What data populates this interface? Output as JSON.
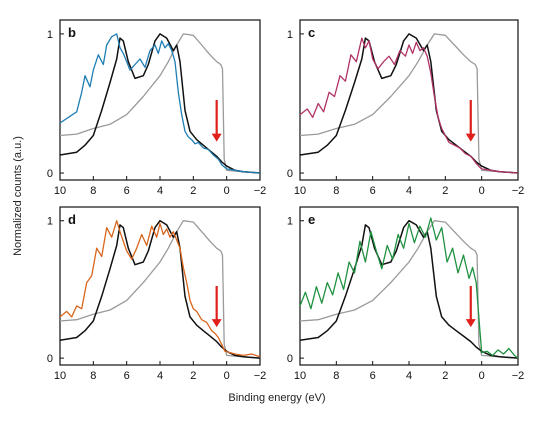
{
  "figure": {
    "ylabel": "Normalized counts (a.u.)",
    "xlabel": "Binding energy (eV)"
  },
  "colors": {
    "black": "#111111",
    "gray": "#9a9a9a",
    "b": "#1f7db5",
    "c": "#b13366",
    "d": "#d9661c",
    "e": "#1f9140",
    "arrow": "#e0201b"
  },
  "chart_data": [
    {
      "type": "line",
      "panel": "b",
      "x_ticks": [
        "10",
        "8",
        "6",
        "4",
        "2",
        "0",
        "−2"
      ],
      "y_ticks": [
        "0",
        "1"
      ],
      "xlim": [
        10,
        -2
      ],
      "ylim": [
        -0.05,
        1.1
      ],
      "arrow_x": 0.6,
      "series": [
        {
          "color_key": "gray",
          "x": [
            10,
            9,
            8,
            7,
            6,
            5,
            4,
            3.5,
            3,
            2.6,
            2,
            1.5,
            1.0,
            0.6,
            0.35,
            0.25,
            0.15,
            0,
            -1,
            -2
          ],
          "y": [
            0.27,
            0.28,
            0.32,
            0.35,
            0.42,
            0.55,
            0.7,
            0.8,
            0.92,
            1.0,
            0.99,
            0.92,
            0.85,
            0.8,
            0.78,
            0.75,
            0.1,
            0.02,
            0.01,
            0.0
          ]
        },
        {
          "color_key": "black",
          "x": [
            10,
            9,
            8.5,
            8,
            7.5,
            7,
            6.6,
            6.4,
            6.2,
            5.9,
            5.5,
            5,
            4.7,
            4.3,
            4,
            3.6,
            3.2,
            3,
            2.8,
            2.5,
            2.2,
            1.8,
            1.4,
            1,
            0.6,
            0.3,
            0,
            -0.5,
            -1,
            -2
          ],
          "y": [
            0.13,
            0.15,
            0.2,
            0.27,
            0.45,
            0.65,
            0.82,
            0.97,
            0.95,
            0.8,
            0.68,
            0.7,
            0.78,
            0.95,
            1.0,
            0.97,
            0.88,
            0.92,
            0.8,
            0.45,
            0.3,
            0.24,
            0.2,
            0.16,
            0.12,
            0.08,
            0.05,
            0.02,
            0.01,
            0.0
          ]
        },
        {
          "color_key": "b",
          "x": [
            10,
            9.5,
            9,
            8.7,
            8.5,
            8.2,
            8,
            7.7,
            7.4,
            7.2,
            6.9,
            6.6,
            6.4,
            6.2,
            6,
            5.8,
            5.5,
            5.2,
            4.9,
            4.6,
            4.3,
            4.1,
            3.9,
            3.7,
            3.5,
            3.3,
            3.1,
            2.9,
            2.7,
            2.5,
            2.3,
            2.1,
            1.9,
            1.7,
            1.4,
            1.1,
            0.8,
            0.5,
            0.3,
            0.1,
            0,
            -0.5,
            -1,
            -2
          ],
          "y": [
            0.36,
            0.4,
            0.44,
            0.58,
            0.7,
            0.62,
            0.74,
            0.85,
            0.78,
            0.92,
            0.98,
            1.0,
            0.9,
            0.86,
            0.8,
            0.74,
            0.78,
            0.82,
            0.76,
            0.88,
            0.92,
            0.86,
            0.95,
            0.9,
            0.93,
            0.88,
            0.8,
            0.58,
            0.42,
            0.3,
            0.26,
            0.24,
            0.21,
            0.22,
            0.18,
            0.17,
            0.13,
            0.1,
            0.06,
            0.04,
            0.03,
            0.02,
            0.01,
            0.0
          ]
        }
      ]
    },
    {
      "type": "line",
      "panel": "c",
      "x_ticks": [
        "10",
        "8",
        "6",
        "4",
        "2",
        "0",
        "−2"
      ],
      "y_ticks": [
        "0",
        "1"
      ],
      "xlim": [
        10,
        -2
      ],
      "ylim": [
        -0.05,
        1.1
      ],
      "arrow_x": 0.6,
      "series": [
        {
          "color_key": "gray",
          "x": [
            10,
            9,
            8,
            7,
            6,
            5,
            4,
            3.5,
            3,
            2.6,
            2,
            1.5,
            1.0,
            0.6,
            0.35,
            0.25,
            0.15,
            0,
            -1,
            -2
          ],
          "y": [
            0.27,
            0.28,
            0.32,
            0.35,
            0.42,
            0.55,
            0.7,
            0.8,
            0.92,
            1.0,
            0.99,
            0.92,
            0.85,
            0.8,
            0.78,
            0.75,
            0.1,
            0.02,
            0.01,
            0.0
          ]
        },
        {
          "color_key": "black",
          "x": [
            10,
            9,
            8.5,
            8,
            7.5,
            7,
            6.6,
            6.4,
            6.2,
            5.9,
            5.5,
            5,
            4.7,
            4.3,
            4,
            3.6,
            3.2,
            3,
            2.8,
            2.5,
            2.2,
            1.8,
            1.4,
            1,
            0.6,
            0.3,
            0,
            -0.5,
            -1,
            -2
          ],
          "y": [
            0.13,
            0.15,
            0.2,
            0.27,
            0.45,
            0.65,
            0.82,
            0.97,
            0.95,
            0.8,
            0.68,
            0.7,
            0.78,
            0.95,
            1.0,
            0.97,
            0.88,
            0.92,
            0.8,
            0.45,
            0.3,
            0.24,
            0.2,
            0.16,
            0.12,
            0.08,
            0.05,
            0.02,
            0.01,
            0.0
          ]
        },
        {
          "color_key": "c",
          "x": [
            10,
            9.6,
            9.3,
            9,
            8.7,
            8.4,
            8.1,
            7.8,
            7.5,
            7.2,
            6.9,
            6.6,
            6.4,
            6.2,
            6,
            5.7,
            5.4,
            5.1,
            4.8,
            4.5,
            4.2,
            4,
            3.8,
            3.6,
            3.4,
            3.2,
            3,
            2.8,
            2.6,
            2.4,
            2.2,
            2,
            1.8,
            1.5,
            1.2,
            0.9,
            0.6,
            0.3,
            0.1,
            0,
            -0.5,
            -1,
            -2
          ],
          "y": [
            0.42,
            0.46,
            0.4,
            0.5,
            0.44,
            0.58,
            0.55,
            0.7,
            0.66,
            0.85,
            0.8,
            0.97,
            0.9,
            0.95,
            0.82,
            0.75,
            0.8,
            0.84,
            0.78,
            0.88,
            0.84,
            0.92,
            0.86,
            0.94,
            0.88,
            0.9,
            0.84,
            0.72,
            0.55,
            0.4,
            0.32,
            0.27,
            0.22,
            0.2,
            0.18,
            0.14,
            0.12,
            0.07,
            0.04,
            0.03,
            0.02,
            0.01,
            0.0
          ]
        }
      ]
    },
    {
      "type": "line",
      "panel": "d",
      "x_ticks": [
        "10",
        "8",
        "6",
        "4",
        "2",
        "0",
        "−2"
      ],
      "y_ticks": [
        "0",
        "1"
      ],
      "xlim": [
        10,
        -2
      ],
      "ylim": [
        -0.05,
        1.1
      ],
      "arrow_x": 0.6,
      "series": [
        {
          "color_key": "gray",
          "x": [
            10,
            9,
            8,
            7,
            6,
            5,
            4,
            3.5,
            3,
            2.6,
            2,
            1.5,
            1.0,
            0.6,
            0.35,
            0.25,
            0.15,
            0,
            -1,
            -2
          ],
          "y": [
            0.27,
            0.28,
            0.32,
            0.35,
            0.42,
            0.55,
            0.7,
            0.8,
            0.92,
            1.0,
            0.99,
            0.92,
            0.85,
            0.8,
            0.78,
            0.75,
            0.1,
            0.02,
            0.01,
            0.0
          ]
        },
        {
          "color_key": "black",
          "x": [
            10,
            9,
            8.5,
            8,
            7.5,
            7,
            6.6,
            6.4,
            6.2,
            5.9,
            5.5,
            5,
            4.7,
            4.3,
            4,
            3.6,
            3.2,
            3,
            2.8,
            2.5,
            2.2,
            1.8,
            1.4,
            1,
            0.6,
            0.3,
            0,
            -0.5,
            -1,
            -2
          ],
          "y": [
            0.13,
            0.15,
            0.2,
            0.27,
            0.45,
            0.65,
            0.82,
            0.97,
            0.95,
            0.8,
            0.68,
            0.7,
            0.78,
            0.95,
            1.0,
            0.97,
            0.88,
            0.92,
            0.8,
            0.45,
            0.3,
            0.24,
            0.2,
            0.16,
            0.12,
            0.08,
            0.05,
            0.02,
            0.01,
            0.0
          ]
        },
        {
          "color_key": "d",
          "x": [
            10,
            9.6,
            9.3,
            9,
            8.7,
            8.4,
            8.1,
            7.8,
            7.5,
            7.2,
            6.9,
            6.6,
            6.4,
            6.2,
            6,
            5.7,
            5.4,
            5.1,
            4.8,
            4.5,
            4.2,
            4,
            3.8,
            3.6,
            3.4,
            3.2,
            3,
            2.8,
            2.6,
            2.4,
            2.2,
            2,
            1.8,
            1.5,
            1.2,
            0.9,
            0.7,
            0.5,
            0.3,
            0.1,
            -0.2,
            -0.5,
            -1,
            -1.5,
            -2
          ],
          "y": [
            0.3,
            0.34,
            0.3,
            0.38,
            0.36,
            0.55,
            0.6,
            0.8,
            0.74,
            0.95,
            0.88,
            1.0,
            0.92,
            0.85,
            0.78,
            0.72,
            0.8,
            0.9,
            0.82,
            0.96,
            0.88,
            0.98,
            0.9,
            0.94,
            0.88,
            0.92,
            0.86,
            0.8,
            0.66,
            0.55,
            0.42,
            0.36,
            0.34,
            0.28,
            0.26,
            0.2,
            0.18,
            0.15,
            0.1,
            0.05,
            0.04,
            0.03,
            0.02,
            0.03,
            0.01
          ]
        }
      ]
    },
    {
      "type": "line",
      "panel": "e",
      "x_ticks": [
        "10",
        "8",
        "6",
        "4",
        "2",
        "0",
        "−2"
      ],
      "y_ticks": [
        "0",
        "1"
      ],
      "xlim": [
        10,
        -2
      ],
      "ylim": [
        -0.05,
        1.1
      ],
      "arrow_x": 0.6,
      "series": [
        {
          "color_key": "gray",
          "x": [
            10,
            9,
            8,
            7,
            6,
            5,
            4,
            3.5,
            3,
            2.6,
            2,
            1.5,
            1.0,
            0.6,
            0.35,
            0.25,
            0.15,
            0,
            -1,
            -2
          ],
          "y": [
            0.27,
            0.28,
            0.32,
            0.35,
            0.42,
            0.55,
            0.7,
            0.8,
            0.92,
            1.0,
            0.99,
            0.92,
            0.85,
            0.8,
            0.78,
            0.75,
            0.1,
            0.02,
            0.01,
            0.0
          ]
        },
        {
          "color_key": "black",
          "x": [
            10,
            9,
            8.5,
            8,
            7.5,
            7,
            6.6,
            6.4,
            6.2,
            5.9,
            5.5,
            5,
            4.7,
            4.3,
            4,
            3.6,
            3.2,
            3,
            2.8,
            2.5,
            2.2,
            1.8,
            1.4,
            1,
            0.6,
            0.3,
            0,
            -0.5,
            -1,
            -2
          ],
          "y": [
            0.13,
            0.15,
            0.2,
            0.27,
            0.45,
            0.65,
            0.82,
            0.97,
            0.95,
            0.8,
            0.68,
            0.7,
            0.78,
            0.95,
            1.0,
            0.97,
            0.88,
            0.92,
            0.8,
            0.45,
            0.3,
            0.24,
            0.2,
            0.16,
            0.12,
            0.08,
            0.05,
            0.02,
            0.01,
            0.0
          ]
        },
        {
          "color_key": "e",
          "x": [
            10,
            9.7,
            9.4,
            9.1,
            8.8,
            8.5,
            8.2,
            7.9,
            7.6,
            7.3,
            7,
            6.7,
            6.4,
            6.1,
            5.8,
            5.5,
            5.2,
            4.9,
            4.6,
            4.3,
            4,
            3.7,
            3.4,
            3.1,
            2.8,
            2.5,
            2.2,
            1.9,
            1.6,
            1.3,
            1,
            0.7,
            0.5,
            0.3,
            0.1,
            0,
            -0.3,
            -0.6,
            -0.9,
            -1.2,
            -1.5,
            -1.8,
            -2
          ],
          "y": [
            0.38,
            0.48,
            0.36,
            0.52,
            0.4,
            0.55,
            0.46,
            0.62,
            0.5,
            0.7,
            0.62,
            0.85,
            0.7,
            0.92,
            0.78,
            0.65,
            0.82,
            0.72,
            0.9,
            0.8,
            0.98,
            0.84,
            0.96,
            0.88,
            1.02,
            0.86,
            0.95,
            0.7,
            0.8,
            0.62,
            0.75,
            0.58,
            0.66,
            0.55,
            0.2,
            0.04,
            0.05,
            0.02,
            0.06,
            0.03,
            0.07,
            0.02,
            0.0
          ]
        }
      ]
    }
  ]
}
